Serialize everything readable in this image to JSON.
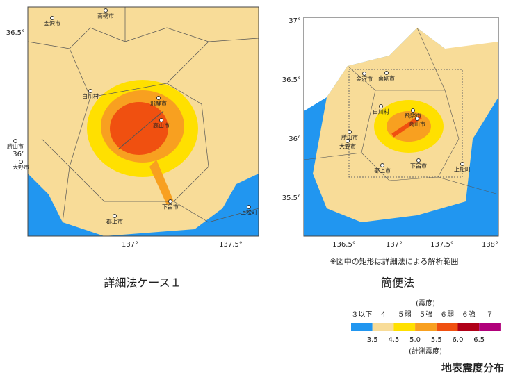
{
  "left_map": {
    "lat_labels": [
      "36.5°",
      "36°"
    ],
    "lon_labels": [
      "137°",
      "137.5°"
    ],
    "places": [
      "金沢市",
      "南砺市",
      "白川村",
      "飛騨市",
      "高山市",
      "勝山市",
      "大野市",
      "下呂市",
      "郡上市",
      "上松町"
    ],
    "caption": "詳細法ケース１"
  },
  "right_map": {
    "lat_labels": [
      "37°",
      "36.5°",
      "36°",
      "35.5°"
    ],
    "lon_labels": [
      "136.5°",
      "137°",
      "137.5°",
      "138°"
    ],
    "places": [
      "金沢市",
      "南砺市",
      "白川村",
      "飛騨市",
      "高山市",
      "勝山市",
      "大野市",
      "郡上市",
      "下呂市",
      "上松町"
    ],
    "note": "※図中の矩形は詳細法による解析範囲",
    "caption": "簡便法"
  },
  "legend": {
    "title": "(震度)",
    "classes": [
      {
        "label": "３以下",
        "color": "#2196f0"
      },
      {
        "label": "４",
        "color": "#f8dc98"
      },
      {
        "label": "５弱",
        "color": "#ffe000"
      },
      {
        "label": "５強",
        "color": "#f8a020"
      },
      {
        "label": "６弱",
        "color": "#f05010"
      },
      {
        "label": "６強",
        "color": "#b00018"
      },
      {
        "label": "７",
        "color": "#b0007a"
      }
    ],
    "boundaries": [
      "3.5",
      "4.5",
      "5.0",
      "5.5",
      "6.0",
      "6.5"
    ],
    "unit": "(計測震度)"
  },
  "figure_title": "地表震度分布"
}
